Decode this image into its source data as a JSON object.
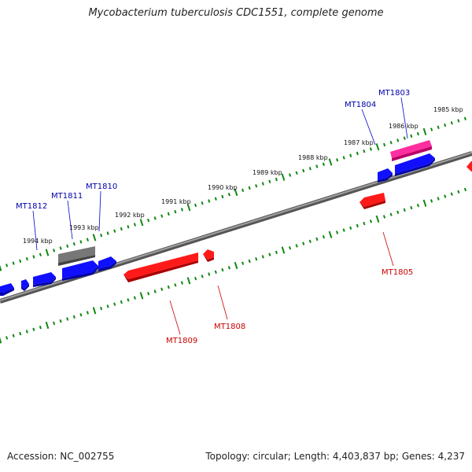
{
  "title": "Mycobacterium tuberculosis CDC1551, complete genome",
  "footer": {
    "accession": "Accession: NC_002755",
    "summary": "Topology: circular; Length: 4,403,837 bp; Genes: 4,237"
  },
  "colors": {
    "forward_gene": "#0000ee",
    "reverse_gene": "#ee0000",
    "highlight_gene": "#ee1188",
    "grey_gene": "#666666",
    "backbone": "#808080",
    "tick": "#118811",
    "forward_label": "#0000aa",
    "reverse_label": "#cc0000"
  },
  "kbp_labels": [
    {
      "text": "1985 kbp"
    },
    {
      "text": "1986 kbp"
    },
    {
      "text": "1987 kbp"
    },
    {
      "text": "1988 kbp"
    },
    {
      "text": "1989 kbp"
    },
    {
      "text": "1990 kbp"
    },
    {
      "text": "1991 kbp"
    },
    {
      "text": "1992 kbp"
    },
    {
      "text": "1993 kbp"
    },
    {
      "text": "1994 kbp"
    }
  ],
  "gene_labels": {
    "forward": [
      "MT1803",
      "MT1804",
      "MT1810",
      "MT1811",
      "MT1812"
    ],
    "reverse": [
      "MT1805",
      "MT1808",
      "MT1809"
    ]
  }
}
